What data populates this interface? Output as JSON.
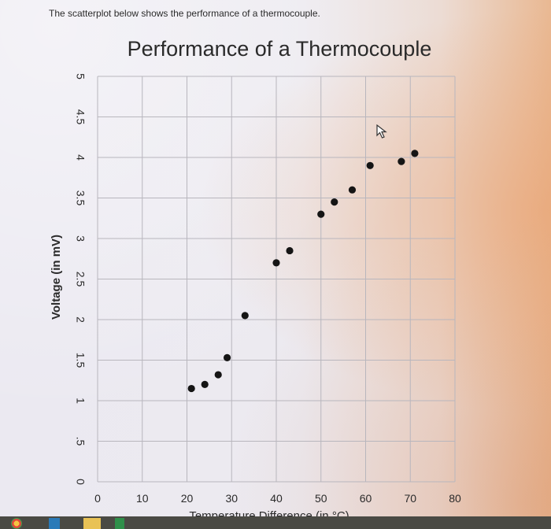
{
  "prompt_text": "The scatterplot below shows the performance of a thermocouple.",
  "icons": {
    "cursor": "mouse-pointer-icon",
    "taskbar": [
      "app-icon-1",
      "app-icon-2",
      "app-icon-3"
    ]
  },
  "colors": {
    "point": "#151515",
    "grid": "#b8b6bd",
    "text": "#2a2a2a"
  },
  "chart_data": {
    "type": "scatter",
    "title": "Performance of a Thermocouple",
    "xlabel": "Temperature Difference (in °C)",
    "ylabel": "Voltage (in mV)",
    "xlim": [
      0,
      80
    ],
    "ylim": [
      0,
      5
    ],
    "x_ticks": [
      0,
      10,
      20,
      30,
      40,
      50,
      60,
      70,
      80
    ],
    "y_ticks": [
      0,
      0.5,
      1,
      1.5,
      2,
      2.5,
      3,
      3.5,
      4,
      4.5,
      5
    ],
    "x_tick_labels": [
      "0",
      "10",
      "20",
      "30",
      "40",
      "50",
      "60",
      "70",
      "80"
    ],
    "y_tick_labels": [
      "0",
      ".5",
      "1",
      "1.5",
      "2",
      "2.5",
      "3",
      "3.5",
      "4",
      "4.5",
      "5"
    ],
    "grid": true,
    "legend": "none",
    "points": [
      {
        "x": 21,
        "y": 1.15
      },
      {
        "x": 24,
        "y": 1.2
      },
      {
        "x": 27,
        "y": 1.32
      },
      {
        "x": 29,
        "y": 1.53
      },
      {
        "x": 33,
        "y": 2.05
      },
      {
        "x": 40,
        "y": 2.7
      },
      {
        "x": 43,
        "y": 2.85
      },
      {
        "x": 50,
        "y": 3.3
      },
      {
        "x": 53,
        "y": 3.45
      },
      {
        "x": 57,
        "y": 3.6
      },
      {
        "x": 61,
        "y": 3.9
      },
      {
        "x": 68,
        "y": 3.95
      },
      {
        "x": 71,
        "y": 4.05
      }
    ]
  }
}
